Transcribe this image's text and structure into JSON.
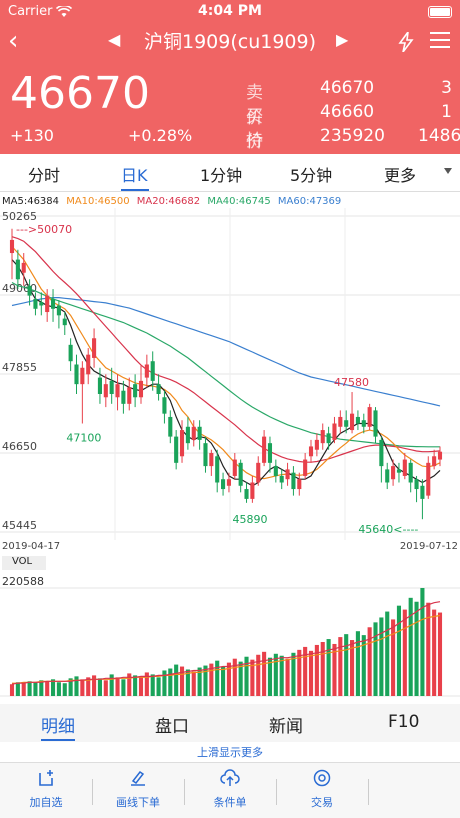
{
  "status": {
    "carrier": "Carrier",
    "time": "4:04 PM"
  },
  "nav": {
    "title": "沪铜1909(cu1909)"
  },
  "price": {
    "last": "46670",
    "change": "+130",
    "change_pct": "+0.28%"
  },
  "quote": {
    "sell_label": "卖价",
    "sell_price": "46670",
    "sell_vol": "3",
    "buy_label": "买价",
    "buy_price": "46660",
    "buy_vol": "1",
    "oi_label": "持仓",
    "oi_value": "235920",
    "oi_change": "1486"
  },
  "tabs": [
    "分时",
    "日K",
    "1分钟",
    "5分钟",
    "更多"
  ],
  "ma": {
    "ma5": "MA5:46384",
    "ma10": "MA10:46500",
    "ma20": "MA20:46682",
    "ma40": "MA40:46745",
    "ma60": "MA60:47369",
    "colors": {
      "ma5": "#222222",
      "ma10": "#f08a1c",
      "ma20": "#d8344c",
      "ma40": "#2aa868",
      "ma60": "#3a7fcf"
    }
  },
  "chart_data": {
    "type": "candlestick",
    "y_ticks": [
      "50265",
      "49060",
      "47855",
      "46650",
      "45445"
    ],
    "ylim": [
      45445,
      50265
    ],
    "x_start": "2019-04-17",
    "x_end": "2019-07-12",
    "annotations": [
      {
        "text": "--->50070",
        "value": 50070
      },
      {
        "text": "47100",
        "value": 47100
      },
      {
        "text": "47580",
        "value": 47580
      },
      {
        "text": "45890",
        "value": 45890
      },
      {
        "text": "45640<----",
        "value": 45640
      }
    ],
    "candles": [
      [
        49700,
        49900,
        49300,
        50070
      ],
      [
        49600,
        49300,
        49150,
        49750
      ],
      [
        49400,
        49550,
        49200,
        49700
      ],
      [
        49200,
        49050,
        48900,
        49300
      ],
      [
        49000,
        48850,
        48750,
        49100
      ],
      [
        48950,
        48900,
        48750,
        49100
      ],
      [
        48800,
        49050,
        48650,
        49150
      ],
      [
        49000,
        48850,
        48650,
        49150
      ],
      [
        48900,
        48750,
        48550,
        48980
      ],
      [
        48700,
        48600,
        48450,
        48800
      ],
      [
        48300,
        48050,
        47900,
        48400
      ],
      [
        48000,
        47700,
        47550,
        48150
      ],
      [
        47700,
        47950,
        47100,
        48050
      ],
      [
        47850,
        48150,
        47700,
        48250
      ],
      [
        48100,
        48400,
        47950,
        48550
      ],
      [
        47800,
        47550,
        47400,
        47950
      ],
      [
        47500,
        47700,
        47350,
        47850
      ],
      [
        47750,
        47550,
        47400,
        47950
      ],
      [
        47500,
        47700,
        47300,
        47850
      ],
      [
        47600,
        47400,
        47250,
        47750
      ],
      [
        47400,
        47650,
        47300,
        47800
      ],
      [
        47700,
        47500,
        47350,
        47850
      ],
      [
        47500,
        47750,
        47400,
        48000
      ],
      [
        47800,
        48000,
        47650,
        48150
      ],
      [
        48050,
        47750,
        47600,
        48200
      ],
      [
        47700,
        47550,
        47450,
        47850
      ],
      [
        47500,
        47250,
        47100,
        47600
      ],
      [
        47200,
        46900,
        46800,
        47300
      ],
      [
        46900,
        46500,
        46400,
        47000
      ],
      [
        46600,
        47000,
        46500,
        47150
      ],
      [
        47050,
        46800,
        46700,
        47200
      ],
      [
        46850,
        47050,
        46750,
        47150
      ],
      [
        47050,
        46850,
        46700,
        47150
      ],
      [
        46800,
        46450,
        46350,
        46900
      ],
      [
        46450,
        46650,
        46300,
        46700
      ],
      [
        46600,
        46200,
        46050,
        46700
      ],
      [
        46250,
        46100,
        46000,
        46350
      ],
      [
        46150,
        46250,
        46050,
        46350
      ],
      [
        46300,
        46550,
        46250,
        46650
      ],
      [
        46500,
        46150,
        46050,
        46550
      ],
      [
        46100,
        45950,
        45890,
        46200
      ],
      [
        45950,
        46200,
        45890,
        46300
      ],
      [
        46200,
        46500,
        46150,
        46600
      ],
      [
        46500,
        46900,
        46450,
        47000
      ],
      [
        46800,
        46500,
        46350,
        46900
      ],
      [
        46450,
        46300,
        46200,
        46550
      ],
      [
        46300,
        46200,
        46100,
        46400
      ],
      [
        46250,
        46400,
        46150,
        46500
      ],
      [
        46350,
        46100,
        46000,
        46450
      ],
      [
        46100,
        46250,
        46000,
        46350
      ],
      [
        46300,
        46550,
        46250,
        46650
      ],
      [
        46600,
        46750,
        46500,
        46850
      ],
      [
        46700,
        46850,
        46600,
        46950
      ],
      [
        46800,
        47000,
        46700,
        47100
      ],
      [
        46950,
        46800,
        46700,
        47050
      ],
      [
        46850,
        47100,
        46800,
        47200
      ],
      [
        47050,
        47200,
        46950,
        47300
      ],
      [
        47150,
        47050,
        46950,
        47300
      ],
      [
        47000,
        47250,
        46950,
        47580
      ],
      [
        47200,
        47100,
        47000,
        47300
      ],
      [
        47150,
        47050,
        46950,
        47250
      ],
      [
        47050,
        47350,
        47000,
        47400
      ],
      [
        47300,
        46900,
        46800,
        47350
      ],
      [
        46850,
        46450,
        46200,
        46900
      ],
      [
        46400,
        46200,
        46100,
        46500
      ],
      [
        46250,
        46450,
        46150,
        46550
      ],
      [
        46400,
        46350,
        46200,
        46500
      ],
      [
        46300,
        46550,
        46250,
        46650
      ],
      [
        46500,
        46200,
        46050,
        46550
      ],
      [
        46250,
        46100,
        45900,
        46300
      ],
      [
        46150,
        45950,
        45640,
        46250
      ],
      [
        46000,
        46500,
        45950,
        46600
      ],
      [
        46450,
        46600,
        46400,
        46700
      ],
      [
        46550,
        46670,
        46450,
        46750
      ]
    ],
    "ma_lines": {
      "ma5": [
        49600,
        49500,
        49350,
        49150,
        49000,
        48950,
        48900,
        48880,
        48860,
        48800,
        48600,
        48350,
        48150,
        48000,
        47900,
        47850,
        47800,
        47760,
        47720,
        47700,
        47650,
        47620,
        47600,
        47650,
        47700,
        47700,
        47600,
        47450,
        47200,
        47000,
        46900,
        46850,
        46900,
        46880,
        46800,
        46650,
        46450,
        46300,
        46250,
        46250,
        46200,
        46150,
        46200,
        46300,
        46400,
        46450,
        46400,
        46350,
        46300,
        46250,
        46250,
        46300,
        46450,
        46600,
        46750,
        46850,
        46950,
        47000,
        47050,
        47100,
        47100,
        47100,
        47050,
        46900,
        46700,
        46500,
        46400,
        46350,
        46300,
        46250,
        46200,
        46250,
        46300,
        46384
      ],
      "ma10": [
        49800,
        49700,
        49600,
        49450,
        49300,
        49150,
        49050,
        48950,
        48900,
        48850,
        48750,
        48600,
        48450,
        48300,
        48150,
        48050,
        47950,
        47900,
        47850,
        47800,
        47760,
        47720,
        47700,
        47680,
        47670,
        47650,
        47620,
        47550,
        47450,
        47300,
        47200,
        47050,
        46950,
        46900,
        46850,
        46780,
        46700,
        46600,
        46500,
        46420,
        46350,
        46300,
        46270,
        46260,
        46280,
        46300,
        46320,
        46330,
        46320,
        46310,
        46320,
        46350,
        46400,
        46480,
        46570,
        46650,
        46730,
        46800,
        46880,
        46940,
        46980,
        47000,
        46980,
        46940,
        46880,
        46800,
        46700,
        46620,
        46560,
        46500,
        46450,
        46440,
        46460,
        46500
      ],
      "ma20": [
        49950,
        49920,
        49880,
        49800,
        49720,
        49620,
        49520,
        49420,
        49330,
        49250,
        49170,
        49080,
        48980,
        48880,
        48780,
        48680,
        48580,
        48480,
        48380,
        48280,
        48180,
        48080,
        47990,
        47920,
        47870,
        47830,
        47800,
        47770,
        47730,
        47680,
        47630,
        47570,
        47500,
        47430,
        47360,
        47290,
        47220,
        47150,
        47080,
        47000,
        46920,
        46850,
        46780,
        46720,
        46670,
        46630,
        46590,
        46560,
        46540,
        46520,
        46510,
        46510,
        46520,
        46540,
        46560,
        46590,
        46620,
        46650,
        46680,
        46710,
        46740,
        46760,
        46770,
        46770,
        46760,
        46750,
        46740,
        46720,
        46700,
        46680,
        46670,
        46670,
        46675,
        46682
      ],
      "ma40": [
        49250,
        49200,
        49180,
        49150,
        49120,
        49080,
        49040,
        49000,
        48970,
        48940,
        48910,
        48880,
        48850,
        48820,
        48790,
        48760,
        48730,
        48700,
        48670,
        48640,
        48600,
        48560,
        48520,
        48480,
        48430,
        48380,
        48330,
        48280,
        48220,
        48160,
        48100,
        48030,
        47960,
        47890,
        47820,
        47750,
        47680,
        47610,
        47540,
        47470,
        47410,
        47350,
        47300,
        47250,
        47200,
        47160,
        47120,
        47080,
        47050,
        47020,
        46990,
        46960,
        46940,
        46920,
        46900,
        46880,
        46860,
        46850,
        46840,
        46830,
        46820,
        46810,
        46800,
        46790,
        46780,
        46770,
        46760,
        46755,
        46750,
        46748,
        46746,
        46745,
        46745,
        46745
      ],
      "ma60": [
        48900,
        48920,
        48940,
        48960,
        48980,
        49000,
        49010,
        49020,
        49020,
        49010,
        49000,
        48990,
        48980,
        48970,
        48960,
        48950,
        48940,
        48920,
        48900,
        48880,
        48860,
        48830,
        48800,
        48770,
        48740,
        48710,
        48680,
        48650,
        48620,
        48590,
        48560,
        48530,
        48500,
        48470,
        48440,
        48410,
        48380,
        48350,
        48310,
        48270,
        48230,
        48190,
        48150,
        48110,
        48070,
        48030,
        47990,
        47950,
        47910,
        47870,
        47840,
        47810,
        47790,
        47770,
        47750,
        47730,
        47710,
        47690,
        47670,
        47650,
        47630,
        47610,
        47590,
        47570,
        47550,
        47530,
        47510,
        47490,
        47470,
        47450,
        47430,
        47410,
        47390,
        47369
      ]
    },
    "volume_max": "220588",
    "volume": [
      12,
      14,
      13,
      15,
      14,
      16,
      15,
      17,
      14,
      13,
      18,
      20,
      17,
      19,
      21,
      18,
      16,
      22,
      19,
      17,
      23,
      21,
      20,
      24,
      22,
      19,
      26,
      28,
      32,
      30,
      27,
      25,
      29,
      31,
      33,
      36,
      30,
      34,
      38,
      35,
      40,
      37,
      42,
      45,
      39,
      43,
      41,
      38,
      44,
      47,
      50,
      46,
      52,
      55,
      58,
      53,
      60,
      63,
      57,
      66,
      62,
      70,
      75,
      80,
      86,
      78,
      92,
      88,
      100,
      96,
      110,
      95,
      88,
      85
    ],
    "volume_ma1": [
      12,
      13,
      13,
      14,
      14,
      14,
      15,
      15,
      15,
      15,
      15,
      16,
      16,
      17,
      17,
      17,
      18,
      18,
      18,
      19,
      19,
      19,
      20,
      20,
      20,
      21,
      21,
      22,
      23,
      24,
      25,
      26,
      26,
      27,
      28,
      29,
      30,
      30,
      31,
      32,
      33,
      34,
      35,
      36,
      37,
      38,
      39,
      39,
      40,
      41,
      42,
      43,
      44,
      45,
      47,
      48,
      50,
      51,
      53,
      55,
      56,
      58,
      61,
      64,
      67,
      70,
      74,
      78,
      82,
      86,
      90,
      93,
      95,
      96
    ],
    "volume_ma2": [
      13,
      13,
      14,
      14,
      14,
      15,
      15,
      15,
      15,
      15,
      16,
      16,
      16,
      16,
      17,
      17,
      17,
      17,
      18,
      18,
      18,
      19,
      19,
      19,
      20,
      20,
      21,
      21,
      22,
      22,
      23,
      24,
      24,
      25,
      26,
      27,
      27,
      28,
      29,
      30,
      31,
      31,
      32,
      33,
      34,
      35,
      36,
      37,
      38,
      39,
      40,
      41,
      42,
      43,
      44,
      45,
      46,
      47,
      49,
      50,
      52,
      54,
      56,
      58,
      61,
      63,
      66,
      69,
      72,
      75,
      78,
      80,
      81,
      82
    ]
  },
  "bottom_tabs": [
    "明细",
    "盘口",
    "新闻",
    "F10"
  ],
  "hint": "上滑显示更多",
  "toolbar": [
    {
      "label": "加自选",
      "icon": "add-watchlist-icon"
    },
    {
      "label": "画线下单",
      "icon": "pen-line-icon"
    },
    {
      "label": "条件单",
      "icon": "cloud-upload-icon"
    },
    {
      "label": "交易",
      "icon": "target-icon"
    }
  ],
  "vol_label": "VOL"
}
